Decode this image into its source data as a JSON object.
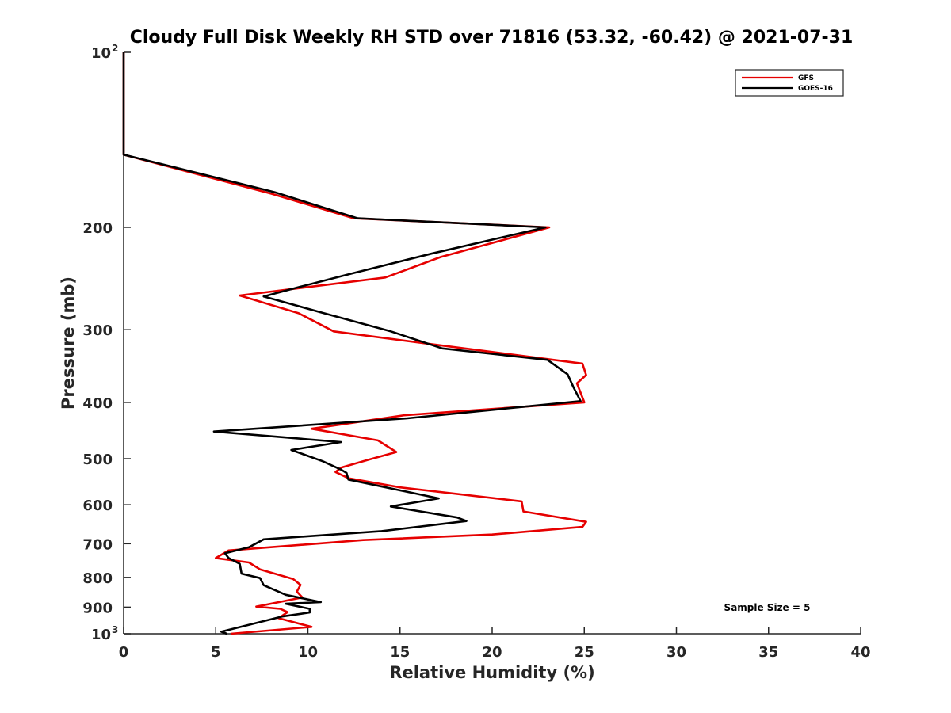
{
  "chart_data": {
    "type": "line",
    "title": "Cloudy Full Disk Weekly RH STD over 71816 (53.32, -60.42) @ 2021-07-31",
    "xlabel": "Relative Humidity (%)",
    "ylabel": "Pressure (mb)",
    "xlim": [
      0,
      40
    ],
    "ylim": [
      100,
      1000
    ],
    "yscale": "log",
    "y_reversed": true,
    "x_ticks": [
      "0",
      "5",
      "10",
      "15",
      "20",
      "25",
      "30",
      "35",
      "40"
    ],
    "y_ticks": [
      {
        "value": 100,
        "base": "10",
        "exp": "2"
      },
      {
        "value": 200,
        "label": "200"
      },
      {
        "value": 300,
        "label": "300"
      },
      {
        "value": 400,
        "label": "400"
      },
      {
        "value": 500,
        "label": "500"
      },
      {
        "value": 600,
        "label": "600"
      },
      {
        "value": 700,
        "label": "700"
      },
      {
        "value": 800,
        "label": "800"
      },
      {
        "value": 900,
        "label": "900"
      },
      {
        "value": 1000,
        "base": "10",
        "exp": "3"
      }
    ],
    "grid": false,
    "legend_position": "top-right",
    "annotation": "Sample Size = 5",
    "series": [
      {
        "name": "GFS",
        "color": "#e60000",
        "points": [
          [
            0,
            100
          ],
          [
            0,
            150
          ],
          [
            8.0,
            175
          ],
          [
            12.5,
            193
          ],
          [
            23.1,
            200
          ],
          [
            17.2,
            225
          ],
          [
            14.2,
            244
          ],
          [
            6.3,
            262
          ],
          [
            9.5,
            281
          ],
          [
            11.4,
            302
          ],
          [
            17.5,
            320
          ],
          [
            24.9,
            343
          ],
          [
            25.1,
            359
          ],
          [
            24.6,
            371
          ],
          [
            25.0,
            400
          ],
          [
            15.2,
            421
          ],
          [
            10.2,
            444
          ],
          [
            13.8,
            465
          ],
          [
            14.8,
            487
          ],
          [
            13.3,
            502
          ],
          [
            11.8,
            518
          ],
          [
            11.5,
            527
          ],
          [
            12.2,
            540
          ],
          [
            15.0,
            560
          ],
          [
            21.6,
            592
          ],
          [
            21.7,
            616
          ],
          [
            25.1,
            642
          ],
          [
            24.9,
            655
          ],
          [
            20.0,
            675
          ],
          [
            13.0,
            690
          ],
          [
            5.7,
            719
          ],
          [
            5.0,
            741
          ],
          [
            6.8,
            754
          ],
          [
            7.4,
            775
          ],
          [
            9.2,
            805
          ],
          [
            9.6,
            824
          ],
          [
            9.4,
            846
          ],
          [
            9.7,
            866
          ],
          [
            7.2,
            898
          ],
          [
            8.5,
            906
          ],
          [
            8.9,
            918
          ],
          [
            8.4,
            940
          ],
          [
            10.2,
            973
          ],
          [
            5.8,
            1000
          ]
        ]
      },
      {
        "name": "GOES-16",
        "color": "#000000",
        "points": [
          [
            0,
            100
          ],
          [
            0,
            150
          ],
          [
            8.2,
            174
          ],
          [
            12.7,
            193
          ],
          [
            22.9,
            200
          ],
          [
            16.7,
            222
          ],
          [
            12.4,
            240
          ],
          [
            9.6,
            253
          ],
          [
            7.6,
            263
          ],
          [
            10.7,
            280
          ],
          [
            14.5,
            302
          ],
          [
            17.3,
            323
          ],
          [
            23.0,
            338
          ],
          [
            24.1,
            358
          ],
          [
            24.4,
            376
          ],
          [
            24.8,
            398
          ],
          [
            15.4,
            426
          ],
          [
            4.9,
            449
          ],
          [
            11.8,
            468
          ],
          [
            9.1,
            483
          ],
          [
            10.8,
            505
          ],
          [
            11.8,
            522
          ],
          [
            12.1,
            529
          ],
          [
            12.2,
            543
          ],
          [
            17.1,
            585
          ],
          [
            14.5,
            604
          ],
          [
            18.1,
            631
          ],
          [
            18.6,
            640
          ],
          [
            14.0,
            666
          ],
          [
            7.6,
            688
          ],
          [
            6.8,
            710
          ],
          [
            5.5,
            727
          ],
          [
            5.7,
            741
          ],
          [
            6.3,
            758
          ],
          [
            6.4,
            788
          ],
          [
            7.4,
            802
          ],
          [
            7.6,
            825
          ],
          [
            8.8,
            857
          ],
          [
            10.7,
            882
          ],
          [
            8.8,
            888
          ],
          [
            10.1,
            906
          ],
          [
            10.1,
            919
          ],
          [
            8.6,
            934
          ],
          [
            5.3,
            992
          ],
          [
            5.6,
            1000
          ]
        ]
      }
    ]
  }
}
